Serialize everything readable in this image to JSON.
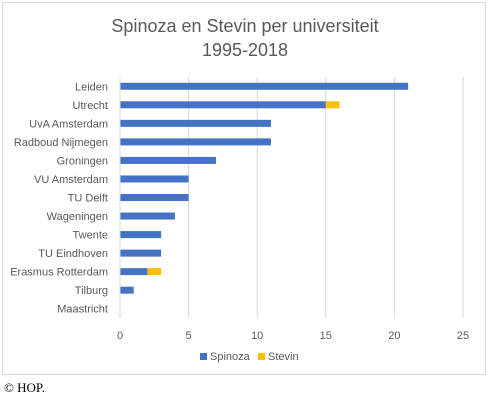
{
  "chart_data": {
    "type": "bar",
    "orientation": "horizontal",
    "stacked": true,
    "title_line1": "Spinoza en Stevin per universiteit",
    "title_line2": "1995-2018",
    "categories": [
      "Leiden",
      "Utrecht",
      "UvA Amsterdam",
      "Radboud Nijmegen",
      "Groningen",
      "VU Amsterdam",
      "TU Delft",
      "Wageningen",
      "Twente",
      "TU Eindhoven",
      "Erasmus Rotterdam",
      "Tilburg",
      "Maastricht"
    ],
    "series": [
      {
        "name": "Spinoza",
        "color": "#4472c4",
        "values": [
          21,
          15,
          11,
          11,
          7,
          5,
          5,
          4,
          3,
          3,
          2,
          1,
          0
        ]
      },
      {
        "name": "Stevin",
        "color": "#ffc000",
        "values": [
          0,
          1,
          0,
          0,
          0,
          0,
          0,
          0,
          0,
          0,
          1,
          0,
          0
        ]
      }
    ],
    "xlim": [
      0,
      25
    ],
    "xticks": [
      "0",
      "5",
      "10",
      "15",
      "20",
      "25"
    ],
    "grid": true,
    "legend_position": "bottom"
  },
  "footer": {
    "copyright": "© HOP."
  }
}
